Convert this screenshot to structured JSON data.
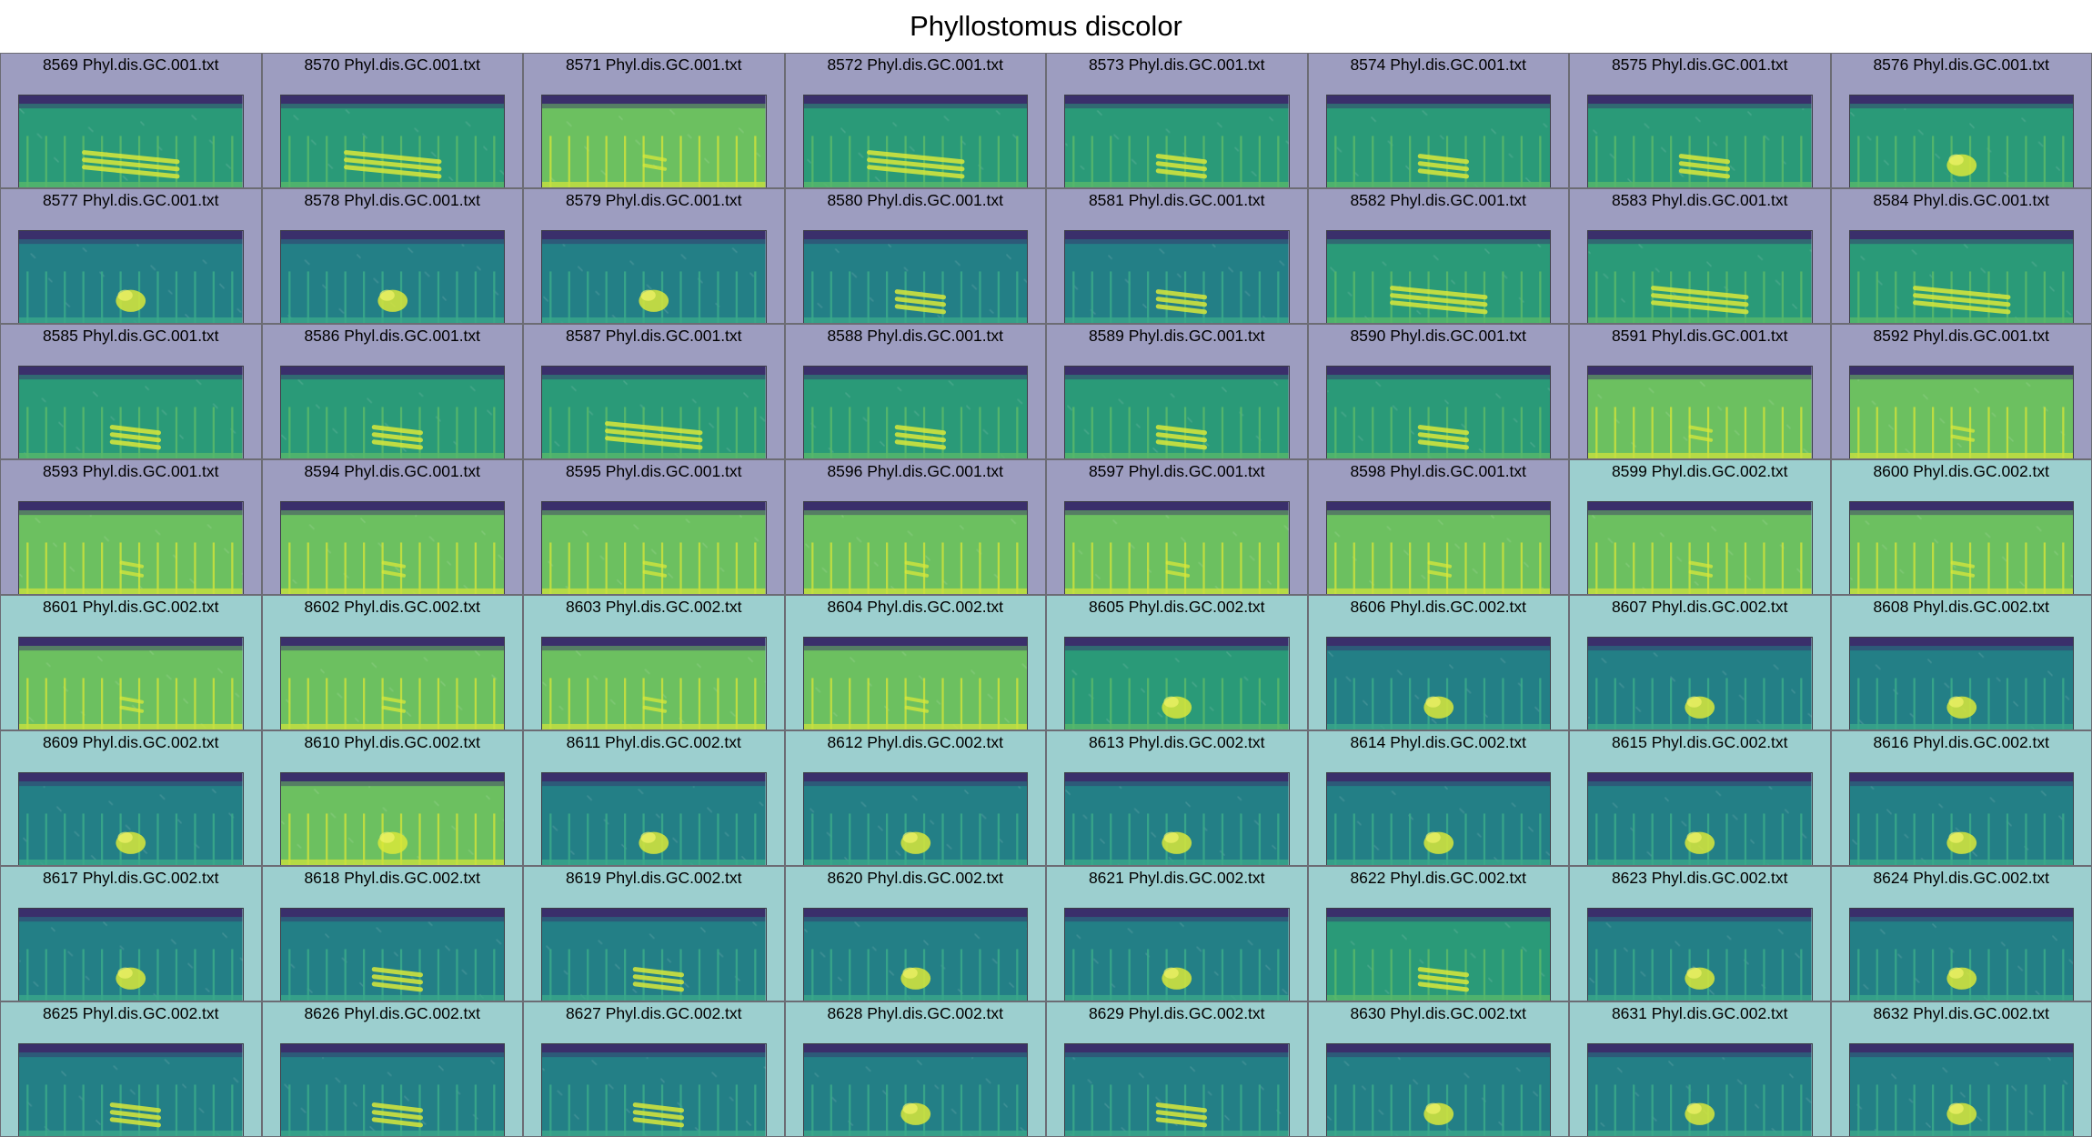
{
  "title": "Phyllostomus discolor",
  "colors": {
    "group_001": "#9d9dc0",
    "group_002": "#9ccfcf",
    "spec_top": "#3a2f6b",
    "spec_mid": "#1f8a7a",
    "spec_low": "#2f9d74",
    "spec_hi": "#d9e83a"
  },
  "tiles": [
    {
      "label": "8569 Phyl.dis.GC.001.txt",
      "group": "001",
      "bg": "green",
      "call": "long"
    },
    {
      "label": "8570 Phyl.dis.GC.001.txt",
      "group": "001",
      "bg": "green",
      "call": "long"
    },
    {
      "label": "8571 Phyl.dis.GC.001.txt",
      "group": "001",
      "bg": "yellow",
      "call": "short"
    },
    {
      "label": "8572 Phyl.dis.GC.001.txt",
      "group": "001",
      "bg": "green",
      "call": "long"
    },
    {
      "label": "8573 Phyl.dis.GC.001.txt",
      "group": "001",
      "bg": "green",
      "call": "medium"
    },
    {
      "label": "8574 Phyl.dis.GC.001.txt",
      "group": "001",
      "bg": "green",
      "call": "medium"
    },
    {
      "label": "8575 Phyl.dis.GC.001.txt",
      "group": "001",
      "bg": "green",
      "call": "medium"
    },
    {
      "label": "8576 Phyl.dis.GC.001.txt",
      "group": "001",
      "bg": "green",
      "call": "blob"
    },
    {
      "label": "8577 Phyl.dis.GC.001.txt",
      "group": "001",
      "bg": "teal",
      "call": "blob"
    },
    {
      "label": "8578 Phyl.dis.GC.001.txt",
      "group": "001",
      "bg": "teal",
      "call": "blob"
    },
    {
      "label": "8579 Phyl.dis.GC.001.txt",
      "group": "001",
      "bg": "teal",
      "call": "blob"
    },
    {
      "label": "8580 Phyl.dis.GC.001.txt",
      "group": "001",
      "bg": "teal",
      "call": "medium"
    },
    {
      "label": "8581 Phyl.dis.GC.001.txt",
      "group": "001",
      "bg": "teal",
      "call": "medium"
    },
    {
      "label": "8582 Phyl.dis.GC.001.txt",
      "group": "001",
      "bg": "green",
      "call": "long"
    },
    {
      "label": "8583 Phyl.dis.GC.001.txt",
      "group": "001",
      "bg": "green",
      "call": "long"
    },
    {
      "label": "8584 Phyl.dis.GC.001.txt",
      "group": "001",
      "bg": "green",
      "call": "long"
    },
    {
      "label": "8585 Phyl.dis.GC.001.txt",
      "group": "001",
      "bg": "green",
      "call": "medium"
    },
    {
      "label": "8586 Phyl.dis.GC.001.txt",
      "group": "001",
      "bg": "green",
      "call": "medium"
    },
    {
      "label": "8587 Phyl.dis.GC.001.txt",
      "group": "001",
      "bg": "green",
      "call": "long"
    },
    {
      "label": "8588 Phyl.dis.GC.001.txt",
      "group": "001",
      "bg": "green",
      "call": "medium"
    },
    {
      "label": "8589 Phyl.dis.GC.001.txt",
      "group": "001",
      "bg": "green",
      "call": "medium"
    },
    {
      "label": "8590 Phyl.dis.GC.001.txt",
      "group": "001",
      "bg": "green",
      "call": "medium"
    },
    {
      "label": "8591 Phyl.dis.GC.001.txt",
      "group": "001",
      "bg": "yellow",
      "call": "short"
    },
    {
      "label": "8592 Phyl.dis.GC.001.txt",
      "group": "001",
      "bg": "yellow",
      "call": "short"
    },
    {
      "label": "8593 Phyl.dis.GC.001.txt",
      "group": "001",
      "bg": "yellow",
      "call": "short"
    },
    {
      "label": "8594 Phyl.dis.GC.001.txt",
      "group": "001",
      "bg": "yellow",
      "call": "short"
    },
    {
      "label": "8595 Phyl.dis.GC.001.txt",
      "group": "001",
      "bg": "yellow",
      "call": "short"
    },
    {
      "label": "8596 Phyl.dis.GC.001.txt",
      "group": "001",
      "bg": "yellow",
      "call": "short"
    },
    {
      "label": "8597 Phyl.dis.GC.001.txt",
      "group": "001",
      "bg": "yellow",
      "call": "short"
    },
    {
      "label": "8598 Phyl.dis.GC.001.txt",
      "group": "001",
      "bg": "yellow",
      "call": "short"
    },
    {
      "label": "8599 Phyl.dis.GC.002.txt",
      "group": "002",
      "bg": "yellow",
      "call": "short"
    },
    {
      "label": "8600 Phyl.dis.GC.002.txt",
      "group": "002",
      "bg": "yellow",
      "call": "short"
    },
    {
      "label": "8601 Phyl.dis.GC.002.txt",
      "group": "002",
      "bg": "yellow",
      "call": "short"
    },
    {
      "label": "8602 Phyl.dis.GC.002.txt",
      "group": "002",
      "bg": "yellow",
      "call": "short"
    },
    {
      "label": "8603 Phyl.dis.GC.002.txt",
      "group": "002",
      "bg": "yellow",
      "call": "short"
    },
    {
      "label": "8604 Phyl.dis.GC.002.txt",
      "group": "002",
      "bg": "yellow",
      "call": "short"
    },
    {
      "label": "8605 Phyl.dis.GC.002.txt",
      "group": "002",
      "bg": "green",
      "call": "blob"
    },
    {
      "label": "8606 Phyl.dis.GC.002.txt",
      "group": "002",
      "bg": "teal",
      "call": "blob"
    },
    {
      "label": "8607 Phyl.dis.GC.002.txt",
      "group": "002",
      "bg": "teal",
      "call": "blob"
    },
    {
      "label": "8608 Phyl.dis.GC.002.txt",
      "group": "002",
      "bg": "teal",
      "call": "blob"
    },
    {
      "label": "8609 Phyl.dis.GC.002.txt",
      "group": "002",
      "bg": "teal",
      "call": "blob"
    },
    {
      "label": "8610 Phyl.dis.GC.002.txt",
      "group": "002",
      "bg": "yellow",
      "call": "blob"
    },
    {
      "label": "8611 Phyl.dis.GC.002.txt",
      "group": "002",
      "bg": "teal",
      "call": "blob"
    },
    {
      "label": "8612 Phyl.dis.GC.002.txt",
      "group": "002",
      "bg": "teal",
      "call": "blob"
    },
    {
      "label": "8613 Phyl.dis.GC.002.txt",
      "group": "002",
      "bg": "teal",
      "call": "blob"
    },
    {
      "label": "8614 Phyl.dis.GC.002.txt",
      "group": "002",
      "bg": "teal",
      "call": "blob"
    },
    {
      "label": "8615 Phyl.dis.GC.002.txt",
      "group": "002",
      "bg": "teal",
      "call": "blob"
    },
    {
      "label": "8616 Phyl.dis.GC.002.txt",
      "group": "002",
      "bg": "teal",
      "call": "blob"
    },
    {
      "label": "8617 Phyl.dis.GC.002.txt",
      "group": "002",
      "bg": "teal",
      "call": "blob"
    },
    {
      "label": "8618 Phyl.dis.GC.002.txt",
      "group": "002",
      "bg": "teal",
      "call": "medium"
    },
    {
      "label": "8619 Phyl.dis.GC.002.txt",
      "group": "002",
      "bg": "teal",
      "call": "medium"
    },
    {
      "label": "8620 Phyl.dis.GC.002.txt",
      "group": "002",
      "bg": "teal",
      "call": "blob"
    },
    {
      "label": "8621 Phyl.dis.GC.002.txt",
      "group": "002",
      "bg": "teal",
      "call": "blob"
    },
    {
      "label": "8622 Phyl.dis.GC.002.txt",
      "group": "002",
      "bg": "green",
      "call": "medium"
    },
    {
      "label": "8623 Phyl.dis.GC.002.txt",
      "group": "002",
      "bg": "teal",
      "call": "blob"
    },
    {
      "label": "8624 Phyl.dis.GC.002.txt",
      "group": "002",
      "bg": "teal",
      "call": "blob"
    },
    {
      "label": "8625 Phyl.dis.GC.002.txt",
      "group": "002",
      "bg": "teal",
      "call": "medium"
    },
    {
      "label": "8626 Phyl.dis.GC.002.txt",
      "group": "002",
      "bg": "teal",
      "call": "medium"
    },
    {
      "label": "8627 Phyl.dis.GC.002.txt",
      "group": "002",
      "bg": "teal",
      "call": "medium"
    },
    {
      "label": "8628 Phyl.dis.GC.002.txt",
      "group": "002",
      "bg": "teal",
      "call": "blob"
    },
    {
      "label": "8629 Phyl.dis.GC.002.txt",
      "group": "002",
      "bg": "teal",
      "call": "medium"
    },
    {
      "label": "8630 Phyl.dis.GC.002.txt",
      "group": "002",
      "bg": "teal",
      "call": "blob"
    },
    {
      "label": "8631 Phyl.dis.GC.002.txt",
      "group": "002",
      "bg": "teal",
      "call": "blob"
    },
    {
      "label": "8632 Phyl.dis.GC.002.txt",
      "group": "002",
      "bg": "teal",
      "call": "blob"
    }
  ]
}
